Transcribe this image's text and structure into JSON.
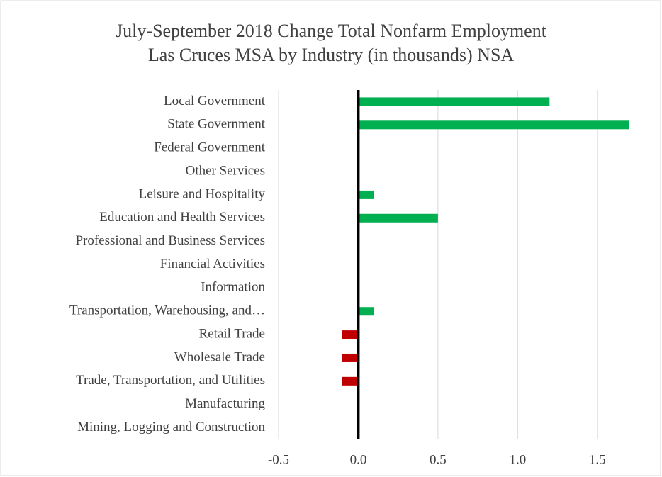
{
  "chart_data": {
    "type": "hbar",
    "title": [
      "July-September 2018 Change Total Nonfarm Employment",
      "Las Cruces MSA by Industry (in thousands) NSA"
    ],
    "categories": [
      "Local Government",
      "State Government",
      "Federal Government",
      "Other Services",
      "Leisure and Hospitality",
      "Education and Health Services",
      "Professional and Business Services",
      "Financial Activities",
      "Information",
      "Transportation, Warehousing, and…",
      "Retail Trade",
      "Wholesale Trade",
      "Trade, Transportation, and Utilities",
      "Manufacturing",
      "Mining, Logging and Construction"
    ],
    "values": [
      1.2,
      1.7,
      0,
      0,
      0.1,
      0.5,
      0,
      0,
      0,
      0.1,
      -0.1,
      -0.1,
      -0.1,
      0,
      0
    ],
    "positive_color": "#00b050",
    "negative_color": "#c00000",
    "xlim": [
      -0.5,
      1.75
    ],
    "xticks": [
      -0.5,
      {
        "value": 0,
        "label": "0.0"
      },
      0.5,
      {
        "value": 1,
        "label": "1.0"
      },
      1.5
    ],
    "grid": true
  }
}
